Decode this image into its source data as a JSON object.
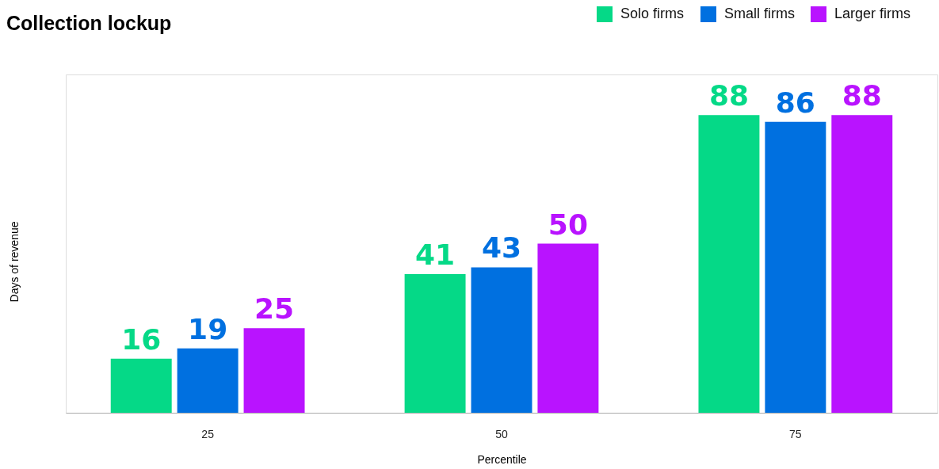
{
  "chart_data": {
    "type": "bar",
    "title": "Collection lockup",
    "xlabel": "Percentile",
    "ylabel": "Days of revenue",
    "categories": [
      "25",
      "50",
      "75"
    ],
    "series": [
      {
        "name": "Solo firms",
        "color": "#05d987",
        "values": [
          16,
          41,
          88
        ]
      },
      {
        "name": "Small firms",
        "color": "#0070e0",
        "values": [
          19,
          43,
          86
        ]
      },
      {
        "name": "Larger firms",
        "color": "#b913ff",
        "values": [
          25,
          50,
          88
        ]
      }
    ],
    "ylim": [
      0,
      100
    ],
    "tick_labels": "x",
    "data_labels": true,
    "legend": "top right"
  }
}
